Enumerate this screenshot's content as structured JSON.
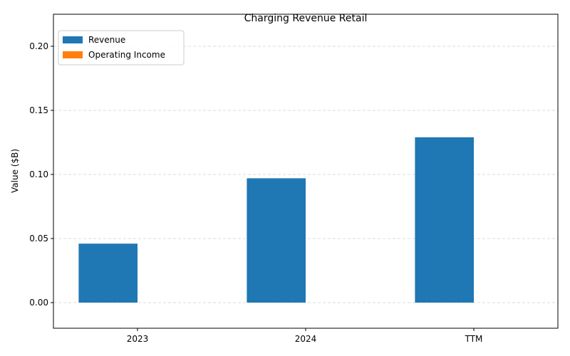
{
  "chart_data": {
    "type": "bar",
    "title": "Charging Revenue Retail",
    "xlabel": "",
    "ylabel": "Value ($B)",
    "categories": [
      "2023",
      "2024",
      "TTM"
    ],
    "series": [
      {
        "name": "Revenue",
        "values": [
          0.046,
          0.097,
          0.129
        ],
        "color": "#1f77b4"
      },
      {
        "name": "Operating Income",
        "values": [
          0,
          0,
          0
        ],
        "color": "#ff7f0e"
      }
    ],
    "ylim": [
      -0.02,
      0.225
    ],
    "yticks": [
      "0.00",
      "0.05",
      "0.10",
      "0.15",
      "0.20"
    ],
    "grid": true,
    "legend_position": "top-left"
  }
}
